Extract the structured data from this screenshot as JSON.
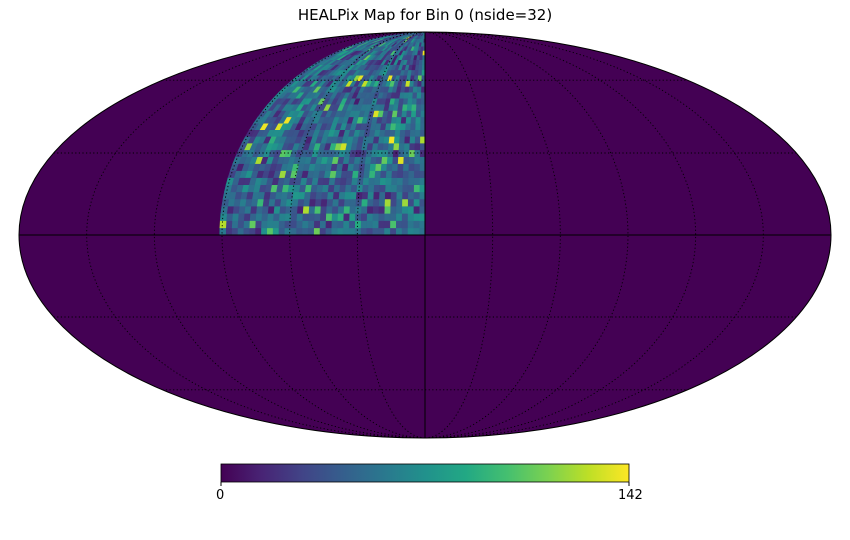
{
  "chart_data": {
    "type": "heatmap",
    "title": "HEALPix Map for Bin 0 (nside=32)",
    "projection": "mollweide",
    "colormap": "viridis",
    "nside": 32,
    "value_range": [
      0,
      142
    ],
    "colorbar": {
      "orientation": "horizontal",
      "tick_labels": [
        "0",
        "142"
      ]
    },
    "graticule": {
      "shown": true,
      "style": "dotted",
      "meridian_step_deg": 30,
      "parallel_step_deg": 30
    },
    "nonzero_region": {
      "lon_range_deg": [
        0,
        90
      ],
      "lat_range_deg": [
        0,
        90
      ],
      "note_values": "pixel counts roughly 10-142, mostly ~40-80"
    },
    "background_value": 0
  },
  "colors": {
    "low": "#440154",
    "high": "#fde725"
  }
}
